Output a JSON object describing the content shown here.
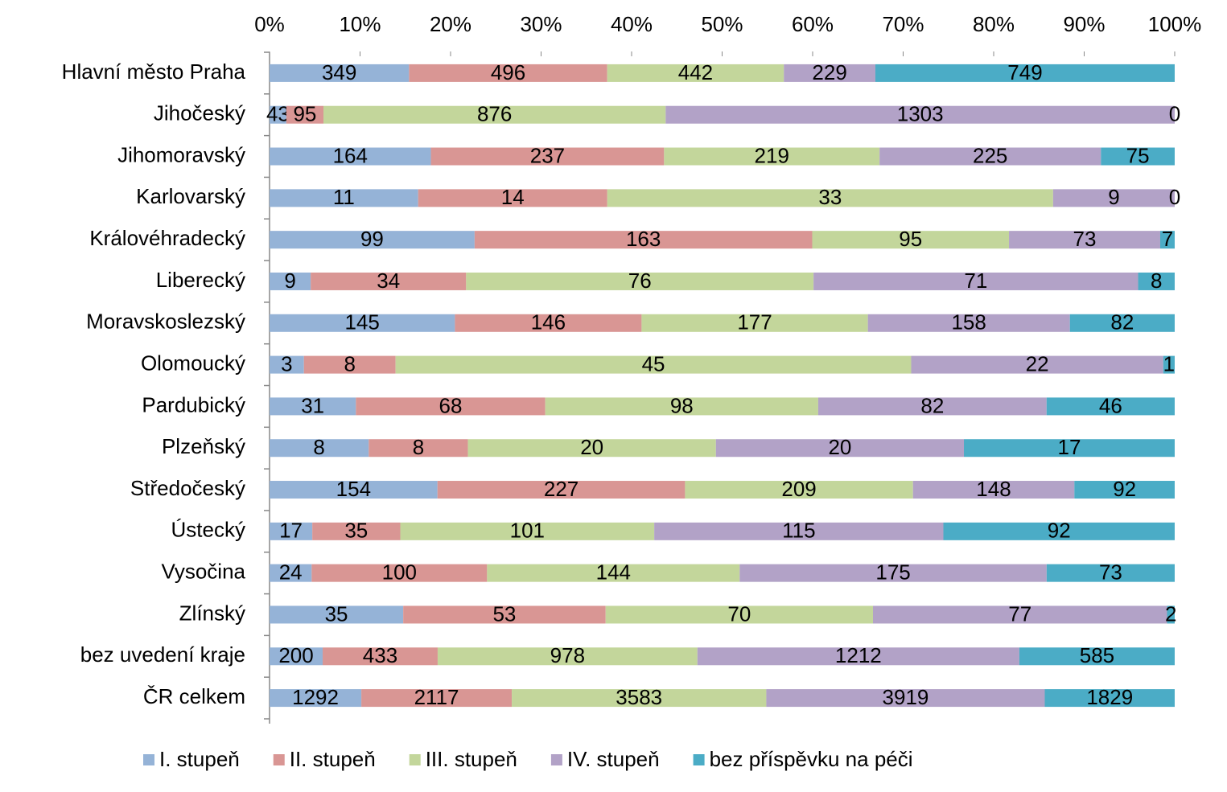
{
  "chart_data": {
    "type": "bar",
    "orientation": "horizontal",
    "stacked": "percent",
    "categories": [
      "Hlavní město Praha",
      "Jihočeský",
      "Jihomoravský",
      "Karlovarský",
      "Královéhradecký",
      "Liberecký",
      "Moravskoslezský",
      "Olomoucký",
      "Pardubický",
      "Plzeňský",
      "Středočeský",
      "Ústecký",
      "Vysočina",
      "Zlínský",
      "bez uvedení kraje",
      "ČR celkem"
    ],
    "series": [
      {
        "name": "I. stupeň",
        "color": "#95b3d7",
        "values": [
          349,
          43,
          164,
          11,
          99,
          9,
          145,
          3,
          31,
          8,
          154,
          17,
          24,
          35,
          200,
          1292
        ]
      },
      {
        "name": "II. stupeň",
        "color": "#d99694",
        "values": [
          496,
          95,
          237,
          14,
          163,
          34,
          146,
          8,
          68,
          8,
          227,
          35,
          100,
          53,
          433,
          2117
        ]
      },
      {
        "name": "III. stupeň",
        "color": "#c3d69b",
        "values": [
          442,
          876,
          219,
          33,
          95,
          76,
          177,
          45,
          98,
          20,
          209,
          101,
          144,
          70,
          978,
          3583
        ]
      },
      {
        "name": "IV. stupeň",
        "color": "#b2a2c7",
        "values": [
          229,
          1303,
          225,
          9,
          73,
          71,
          158,
          22,
          82,
          20,
          148,
          115,
          175,
          77,
          1212,
          3919
        ]
      },
      {
        "name": "bez příspěvku na péči",
        "color": "#4bacc6",
        "values": [
          749,
          0,
          75,
          0,
          7,
          8,
          82,
          1,
          46,
          17,
          92,
          92,
          73,
          2,
          585,
          1829
        ]
      }
    ],
    "xlim": [
      0,
      100
    ],
    "xticks": [
      {
        "value": 0,
        "label": "0%"
      },
      {
        "value": 10,
        "label": "10%"
      },
      {
        "value": 20,
        "label": "20%"
      },
      {
        "value": 30,
        "label": "30%"
      },
      {
        "value": 40,
        "label": "40%"
      },
      {
        "value": 50,
        "label": "50%"
      },
      {
        "value": 60,
        "label": "60%"
      },
      {
        "value": 70,
        "label": "70%"
      },
      {
        "value": 80,
        "label": "80%"
      },
      {
        "value": 90,
        "label": "90%"
      },
      {
        "value": 100,
        "label": "100%"
      }
    ],
    "legend": "bottom"
  }
}
